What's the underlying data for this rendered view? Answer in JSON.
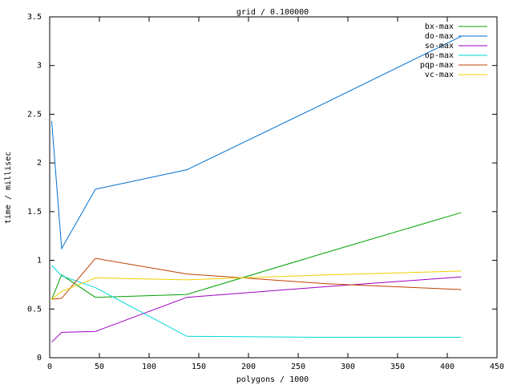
{
  "chart_data": {
    "type": "line",
    "title": "grid / 0.100000",
    "x_label": "polygons / 1000",
    "y_label": "time / millisec",
    "x": [
      2,
      12,
      46,
      138,
      278,
      414
    ],
    "series": [
      {
        "name": "bx-max",
        "color": "#00a000",
        "values": [
          0.6,
          0.85,
          0.62,
          0.65,
          1.08,
          1.49
        ]
      },
      {
        "name": "do-max",
        "color": "#0070d0",
        "values": [
          2.43,
          1.12,
          1.73,
          1.93,
          2.62,
          3.3
        ]
      },
      {
        "name": "so-max",
        "color": "#a000c0",
        "values": [
          0.16,
          0.26,
          0.27,
          0.62,
          0.73,
          0.83
        ]
      },
      {
        "name": "op-max",
        "color": "#00d8d8",
        "values": [
          0.95,
          0.84,
          0.72,
          0.22,
          0.21,
          0.21
        ]
      },
      {
        "name": "pqp-max",
        "color": "#c04000",
        "values": [
          0.6,
          0.61,
          1.02,
          0.86,
          0.76,
          0.7
        ]
      },
      {
        "name": "vc-max",
        "color": "#f0d000",
        "values": [
          0.6,
          0.68,
          0.82,
          0.8,
          0.85,
          0.89
        ]
      }
    ],
    "xlim": [
      0,
      450
    ],
    "xticks": [
      0,
      50,
      100,
      150,
      200,
      250,
      300,
      350,
      400,
      450
    ],
    "ylim": [
      0,
      3.5
    ],
    "yticks": [
      0,
      0.5,
      1,
      1.5,
      2,
      2.5,
      3,
      3.5
    ],
    "legend": "top-right"
  }
}
